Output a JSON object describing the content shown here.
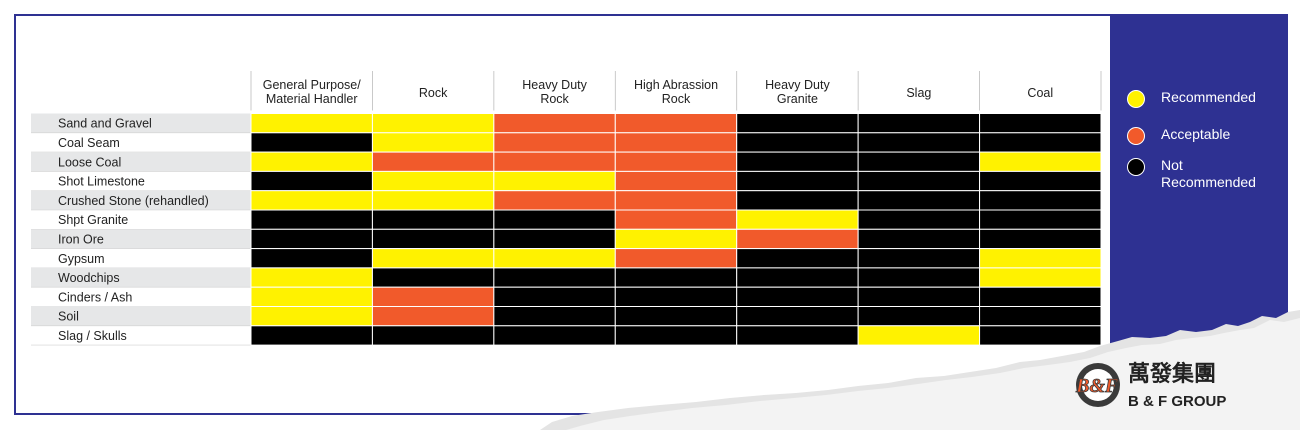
{
  "chart_data": {
    "type": "heatmap",
    "columns": [
      "General Purpose/\nMaterial Handler",
      "Rock",
      "Heavy Duty\nRock",
      "High Abrassion\nRock",
      "Heavy Duty\nGranite",
      "Slag",
      "Coal"
    ],
    "rows": [
      "Sand and Gravel",
      "Coal Seam",
      "Loose Coal",
      "Shot Limestone",
      "Crushed Stone (rehandled)",
      "Shpt Granite",
      "Iron Ore",
      "Gypsum",
      "Woodchips",
      "Cinders / Ash",
      "Soil",
      "Slag / Skulls"
    ],
    "values": [
      [
        "R",
        "R",
        "A",
        "A",
        "N",
        "N",
        "N"
      ],
      [
        "N",
        "R",
        "A",
        "A",
        "N",
        "N",
        "N"
      ],
      [
        "R",
        "A",
        "A",
        "A",
        "N",
        "N",
        "R"
      ],
      [
        "N",
        "R",
        "R",
        "A",
        "N",
        "N",
        "N"
      ],
      [
        "R",
        "R",
        "A",
        "A",
        "N",
        "N",
        "N"
      ],
      [
        "N",
        "N",
        "N",
        "A",
        "R",
        "N",
        "N"
      ],
      [
        "N",
        "N",
        "N",
        "R",
        "A",
        "N",
        "N"
      ],
      [
        "N",
        "R",
        "R",
        "A",
        "N",
        "N",
        "R"
      ],
      [
        "R",
        "N",
        "N",
        "N",
        "N",
        "N",
        "R"
      ],
      [
        "R",
        "A",
        "N",
        "N",
        "N",
        "N",
        "N"
      ],
      [
        "R",
        "A",
        "N",
        "N",
        "N",
        "N",
        "N"
      ],
      [
        "N",
        "N",
        "N",
        "N",
        "N",
        "R",
        "N"
      ]
    ],
    "legend": [
      {
        "key": "R",
        "label": "Recommended",
        "color": "#fff200"
      },
      {
        "key": "A",
        "label": "Acceptable",
        "color": "#f15a2b"
      },
      {
        "key": "N",
        "label": "Not Recommended",
        "color": "#000000"
      }
    ]
  },
  "colors": {
    "brand_blue": "#2e3192",
    "row_stripe": "#e6e7e8",
    "logo_orange": "#f15a2b"
  },
  "logo": {
    "chinese": "萬發集團",
    "english": "B & F GROUP",
    "mark": "B&F"
  }
}
